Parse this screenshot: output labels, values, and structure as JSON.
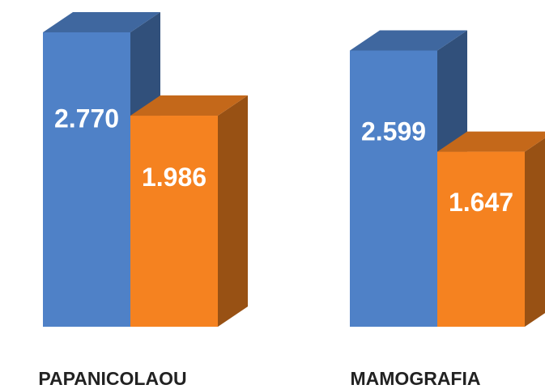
{
  "chart_data": {
    "type": "bar3d",
    "categories": [
      "PAPANICOLAOU",
      "MAMOGRAFIA"
    ],
    "series": [
      {
        "color": "#4f81c7",
        "values": [
          2770,
          2599
        ],
        "value_labels": [
          "2.770",
          "2.599"
        ]
      },
      {
        "color": "#f58220",
        "values": [
          1986,
          1647
        ],
        "value_labels": [
          "1.986",
          "1.647"
        ]
      }
    ]
  }
}
